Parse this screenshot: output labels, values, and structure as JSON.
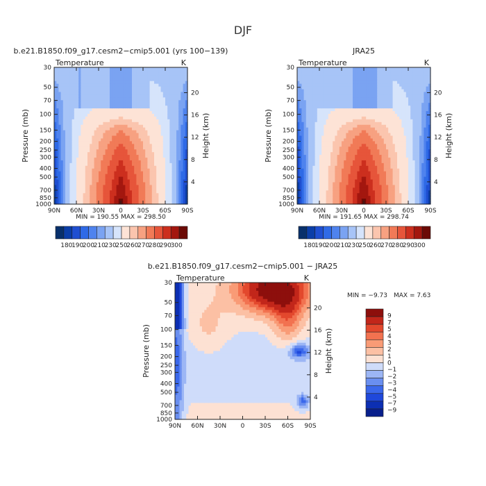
{
  "page": {
    "title": "DJF"
  },
  "palettes": {
    "abs": [
      "#08306b",
      "#0b3ea8",
      "#1f4fd1",
      "#2f6ae6",
      "#4f83ee",
      "#7aa3f2",
      "#a7c4f7",
      "#d6e4fb",
      "#fde3d6",
      "#fbc5ae",
      "#f7a181",
      "#f17a57",
      "#e6553a",
      "#cc2f1e",
      "#a3170f",
      "#6b0a06"
    ],
    "diff": [
      "#081f8c",
      "#0c2fb3",
      "#1f48db",
      "#3b68eb",
      "#6a8ff0",
      "#9cb6f5",
      "#cfdcfa",
      "#fde1d3",
      "#fcc0a4",
      "#f99b76",
      "#f27250",
      "#e3482d",
      "#c2261a",
      "#8d0f0c"
    ]
  },
  "chart_data": [
    {
      "type": "heatmap",
      "title": "b.e21.B1850.f09_g17.cesm2−cmip5.001 (yrs 100−139)",
      "left_label": "Temperature",
      "right_label": "K",
      "ylabel": "Pressure (mb)",
      "ylabel_right": "Height (km)",
      "xticks": [
        "90N",
        "60N",
        "30N",
        "0",
        "30S",
        "60S",
        "90S"
      ],
      "yticks": [
        "30",
        "50",
        "70",
        "100",
        "150",
        "200",
        "250",
        "300",
        "400",
        "500",
        "700",
        "850",
        "1000"
      ],
      "yticks_right": [
        "20",
        "16",
        "12",
        "8",
        "4"
      ],
      "stats": "MIN = 190.55   MAX = 298.50",
      "colorbar_labels": [
        "180",
        "190",
        "200",
        "210",
        "230",
        "250",
        "260",
        "270",
        "280",
        "290",
        "300"
      ],
      "ranges": {
        "lat": [
          90,
          -90
        ],
        "pressure_mb": [
          30,
          1000
        ]
      }
    },
    {
      "type": "heatmap",
      "title": "JRA25",
      "left_label": "Temperature",
      "right_label": "K",
      "ylabel": "Pressure (mb)",
      "ylabel_right": "Height (km)",
      "xticks": [
        "90N",
        "60N",
        "30N",
        "0",
        "30S",
        "60S",
        "90S"
      ],
      "yticks": [
        "30",
        "50",
        "70",
        "100",
        "150",
        "200",
        "250",
        "300",
        "400",
        "500",
        "700",
        "850",
        "1000"
      ],
      "yticks_right": [
        "20",
        "16",
        "12",
        "8",
        "4"
      ],
      "stats": "MIN = 191.65   MAX = 298.74",
      "colorbar_labels": [
        "180",
        "190",
        "200",
        "210",
        "230",
        "250",
        "260",
        "270",
        "280",
        "290",
        "300"
      ],
      "ranges": {
        "lat": [
          90,
          -90
        ],
        "pressure_mb": [
          30,
          1000
        ]
      }
    },
    {
      "type": "heatmap",
      "title": "b.e21.B1850.f09_g17.cesm2−cmip5.001 − JRA25",
      "left_label": "Temperature",
      "right_label": "K",
      "ylabel": "Pressure (mb)",
      "ylabel_right": "Height (km)",
      "xticks": [
        "90N",
        "60N",
        "30N",
        "0",
        "30S",
        "60S",
        "90S"
      ],
      "yticks": [
        "30",
        "50",
        "70",
        "100",
        "150",
        "200",
        "250",
        "300",
        "400",
        "500",
        "700",
        "850",
        "1000"
      ],
      "yticks_right": [
        "20",
        "16",
        "12",
        "8",
        "4"
      ],
      "stats_min": "MIN =  −9.73",
      "stats_max": "MAX =   7.63",
      "colorbar_labels": [
        "9",
        "7",
        "5",
        "4",
        "3",
        "2",
        "1",
        "0",
        "−1",
        "−2",
        "−3",
        "−4",
        "−5",
        "−7",
        "−9"
      ],
      "ranges": {
        "lat": [
          90,
          -90
        ],
        "pressure_mb": [
          30,
          1000
        ]
      }
    }
  ]
}
